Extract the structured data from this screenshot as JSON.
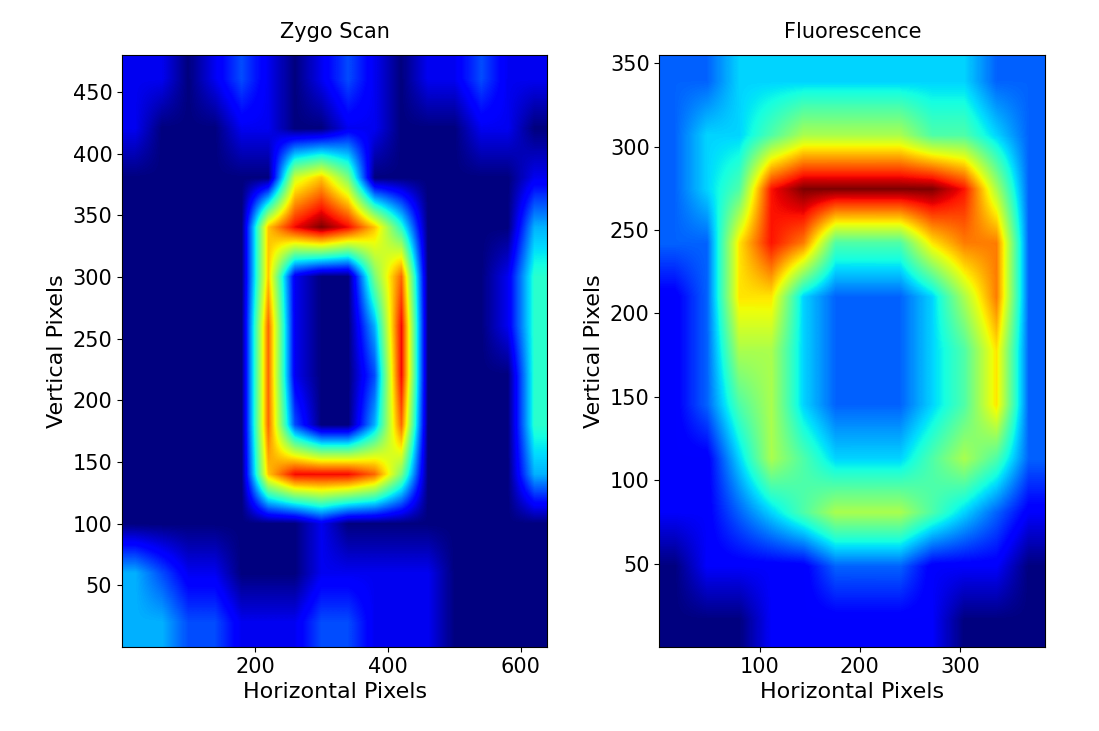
{
  "chart_data": [
    {
      "type": "heatmap",
      "title": "Zygo Scan",
      "x_label": "Horizontal Pixels",
      "y_label": "Vertical Pixels",
      "xlim": [
        0,
        640
      ],
      "ylim": [
        0,
        480
      ],
      "xticks": [
        200,
        400,
        600
      ],
      "yticks": [
        50,
        100,
        150,
        200,
        250,
        300,
        350,
        400,
        450
      ],
      "cells": [
        [
          3,
          3,
          2,
          2,
          1,
          1,
          1,
          2,
          2,
          1,
          1,
          1,
          0,
          0,
          0,
          0
        ],
        [
          3,
          2,
          1,
          1,
          0,
          0,
          0,
          1,
          1,
          1,
          1,
          1,
          0,
          0,
          0,
          0
        ],
        [
          0,
          0,
          0,
          0,
          0,
          0,
          0,
          1,
          0,
          0,
          0,
          0,
          0,
          0,
          0,
          0
        ],
        [
          0,
          0,
          0,
          0,
          0,
          7,
          9,
          9,
          9,
          8,
          5,
          0,
          0,
          0,
          0,
          3
        ],
        [
          0,
          0,
          0,
          0,
          0,
          8,
          2,
          0,
          0,
          3,
          8,
          0,
          0,
          0,
          0,
          4
        ],
        [
          0,
          0,
          0,
          0,
          0,
          8,
          1,
          0,
          0,
          2,
          9,
          0,
          0,
          0,
          0,
          4
        ],
        [
          0,
          0,
          0,
          0,
          0,
          8,
          1,
          0,
          0,
          3,
          9,
          0,
          0,
          0,
          1,
          4
        ],
        [
          0,
          0,
          0,
          0,
          0,
          7,
          1,
          0,
          0,
          5,
          8,
          0,
          0,
          0,
          1,
          4
        ],
        [
          0,
          0,
          0,
          0,
          0,
          7,
          9,
          10,
          9,
          7,
          4,
          0,
          0,
          0,
          0,
          3
        ],
        [
          0,
          0,
          0,
          0,
          0,
          0,
          6,
          7,
          5,
          0,
          0,
          0,
          0,
          0,
          0,
          1
        ],
        [
          1,
          0,
          0,
          0,
          1,
          1,
          0,
          0,
          1,
          1,
          0,
          0,
          0,
          1,
          1,
          0
        ],
        [
          1,
          1,
          0,
          1,
          2,
          1,
          0,
          1,
          2,
          1,
          0,
          1,
          1,
          2,
          1,
          1
        ]
      ]
    },
    {
      "type": "heatmap",
      "title": "Fluorescence",
      "x_label": "Horizontal Pixels",
      "y_label": "Vertical Pixels",
      "xlim": [
        0,
        385
      ],
      "ylim": [
        0,
        355
      ],
      "xticks": [
        100,
        200,
        300
      ],
      "yticks": [
        50,
        100,
        150,
        200,
        250,
        300,
        350
      ],
      "cells": [
        [
          1,
          1,
          1,
          2,
          2,
          2,
          2,
          2,
          2,
          1,
          1,
          1
        ],
        [
          1,
          2,
          2,
          2,
          2,
          3,
          3,
          3,
          2,
          2,
          2,
          1
        ],
        [
          2,
          2,
          3,
          4,
          5,
          6,
          6,
          6,
          5,
          4,
          3,
          2
        ],
        [
          2,
          2,
          4,
          6,
          5,
          4,
          4,
          4,
          5,
          6,
          5,
          3
        ],
        [
          2,
          3,
          5,
          6,
          4,
          3,
          3,
          3,
          4,
          5,
          7,
          3
        ],
        [
          2,
          3,
          6,
          6,
          4,
          3,
          3,
          3,
          4,
          5,
          7,
          3
        ],
        [
          2,
          3,
          7,
          7,
          4,
          3,
          3,
          3,
          4,
          6,
          8,
          3
        ],
        [
          3,
          3,
          7,
          9,
          8,
          5,
          5,
          5,
          7,
          8,
          8,
          3
        ],
        [
          3,
          4,
          5,
          9,
          10,
          10,
          10,
          10,
          10,
          9,
          6,
          3
        ],
        [
          3,
          4,
          4,
          5,
          6,
          6,
          6,
          6,
          5,
          5,
          4,
          3
        ],
        [
          3,
          3,
          4,
          4,
          4,
          4,
          4,
          4,
          4,
          4,
          3,
          3
        ]
      ]
    }
  ]
}
